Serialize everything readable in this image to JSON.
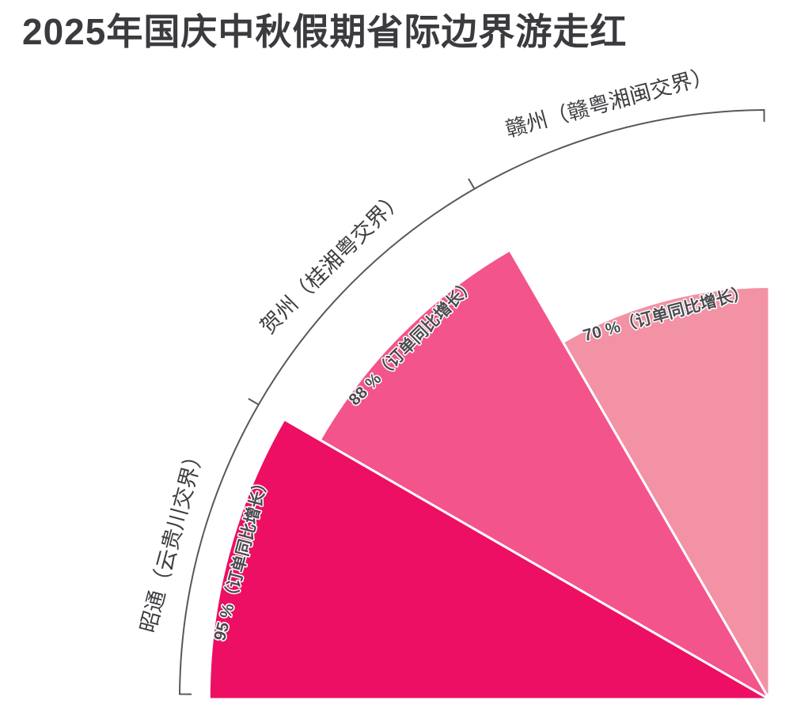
{
  "title": "2025年国庆中秋假期省际边界游走红",
  "chart_data": {
    "type": "bar",
    "variant": "polar-fan",
    "title": "2025年国庆中秋假期省际边界游走红",
    "categories": [
      "昭通（云贵川交界）",
      "贺州（桂湘粤交界）",
      "赣州（赣粤湘闽交界）"
    ],
    "values": [
      95,
      88,
      70
    ],
    "unit": "%",
    "value_labels": [
      "95 %（订单同比增长）",
      "88 %（订单同比增长）",
      "70 %（订单同比增长）"
    ],
    "colors": [
      "#ED0F64",
      "#F3548B",
      "#F292A4"
    ],
    "axis_color": "#58585c",
    "label_color": "#3e3e42",
    "value_label_color": "#4b4b50",
    "value_label_outline": "#ffffff",
    "angle_start_deg": 180,
    "angle_per_sector_deg": 30,
    "grid": false,
    "legend": false
  }
}
